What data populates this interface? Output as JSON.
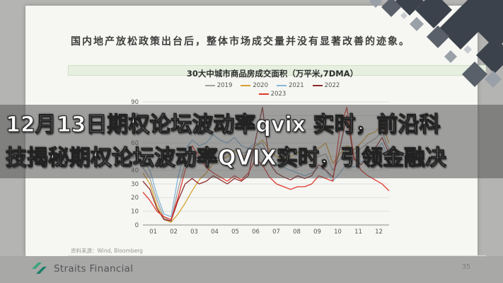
{
  "slide": {
    "headline": "国内地产放松政策出台后，整体市场成交量并没有显著改善的迹象。",
    "source_note": "资料来源：Wind, Bloomberg",
    "page_number": "35",
    "brand": "Straits Financial"
  },
  "banner": {
    "line1": "12月13日期权论坛波动率qvix 实时，前沿科",
    "line2": "技揭秘期权论坛波动率QVIX实时，引领金融决"
  },
  "chart_data": {
    "type": "line",
    "title": "30大中城市商品房成交面积（万平米,7DMA）",
    "xlabel": "",
    "ylabel": "",
    "x_tick_labels": [
      "01",
      "02",
      "03",
      "04",
      "05",
      "06",
      "07",
      "08",
      "09",
      "10",
      "11",
      "12"
    ],
    "ylim": [
      0,
      90
    ],
    "y_ticks": [
      0,
      10,
      20,
      30,
      40,
      50,
      60,
      70,
      80,
      90
    ],
    "grid": true,
    "legend_position": "top",
    "series": [
      {
        "name": "2019",
        "color": "#a0a0a0",
        "values": [
          42,
          34,
          18,
          5,
          3,
          26,
          45,
          50,
          48,
          50,
          53,
          47,
          50,
          55,
          52,
          54,
          58,
          60,
          48,
          45,
          46,
          44,
          42,
          45,
          47,
          50,
          52,
          40,
          48,
          55,
          52,
          56,
          60,
          63,
          68,
          55
        ]
      },
      {
        "name": "2020",
        "color": "#d4a231",
        "values": [
          38,
          30,
          14,
          4,
          2,
          8,
          16,
          25,
          33,
          38,
          45,
          48,
          50,
          54,
          50,
          52,
          58,
          62,
          55,
          50,
          48,
          50,
          53,
          55,
          52,
          56,
          60,
          45,
          52,
          58,
          55,
          60,
          66,
          68,
          73,
          60
        ]
      },
      {
        "name": "2021",
        "color": "#85b7d9",
        "values": [
          48,
          40,
          22,
          8,
          6,
          35,
          55,
          62,
          58,
          60,
          66,
          62,
          60,
          64,
          58,
          56,
          60,
          55,
          48,
          44,
          42,
          40,
          38,
          36,
          38,
          42,
          40,
          32,
          38,
          45,
          42,
          46,
          50,
          54,
          60,
          48
        ]
      },
      {
        "name": "2022",
        "color": "#8f2b2b",
        "values": [
          32,
          26,
          12,
          4,
          3,
          18,
          30,
          34,
          30,
          32,
          36,
          33,
          30,
          34,
          32,
          36,
          62,
          86,
          45,
          38,
          35,
          33,
          36,
          34,
          36,
          44,
          40,
          35,
          56,
          80,
          48,
          44,
          50,
          56,
          64,
          52
        ]
      },
      {
        "name": "2023",
        "color": "#e0392b",
        "values": [
          24,
          18,
          10,
          6,
          4,
          20,
          40,
          58,
          50,
          42,
          38,
          35,
          32,
          36,
          33,
          38,
          48,
          44,
          35,
          30,
          28,
          26,
          28,
          28,
          30,
          36,
          34,
          32,
          70,
          86,
          50,
          40,
          36,
          33,
          30,
          25
        ]
      }
    ]
  }
}
